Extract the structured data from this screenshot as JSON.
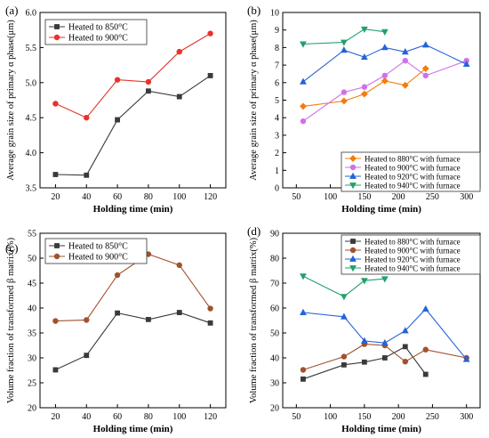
{
  "colors": {
    "black": "#3a3a3a",
    "red": "#e8332a",
    "brown": "#a0522d",
    "orange": "#f57c0a",
    "violet": "#d070e8",
    "blue": "#2563d8",
    "green": "#22a06b"
  },
  "chart_data": [
    {
      "panel": "(a)",
      "type": "line",
      "xlabel": "Holding time (min)",
      "ylabel": "Average grain size of primary α phase(μm)",
      "xlim": [
        10,
        130
      ],
      "ylim": [
        3.5,
        6.0
      ],
      "xticks": [
        20,
        40,
        60,
        80,
        100,
        120
      ],
      "yticks": [
        3.5,
        4.0,
        4.5,
        5.0,
        5.5,
        6.0
      ],
      "tick_format": 1,
      "legend_position": "top-left",
      "series": [
        {
          "name": "Heated to 850°C",
          "color": "black",
          "marker": "square",
          "x": [
            20,
            40,
            60,
            80,
            100,
            120
          ],
          "y": [
            3.69,
            3.68,
            4.47,
            4.88,
            4.8,
            5.1
          ]
        },
        {
          "name": "Heated to 900°C",
          "color": "red",
          "marker": "circle",
          "x": [
            20,
            40,
            60,
            80,
            100,
            120
          ],
          "y": [
            4.7,
            4.5,
            5.04,
            5.01,
            5.44,
            5.7
          ]
        }
      ]
    },
    {
      "panel": "(b)",
      "type": "line",
      "xlabel": "Holding time (min)",
      "ylabel": "Average grain size of primary α phase(μm)",
      "xlim": [
        30,
        320
      ],
      "ylim": [
        0,
        10
      ],
      "xticks": [
        50,
        100,
        150,
        200,
        250,
        300
      ],
      "yticks": [
        0,
        1,
        2,
        3,
        4,
        5,
        6,
        7,
        8,
        9,
        10
      ],
      "tick_format": 0,
      "legend_position": "bottom-right",
      "series": [
        {
          "name": "Heated to 880°C with furnace",
          "color": "orange",
          "marker": "diamond",
          "x": [
            60,
            120,
            150,
            180,
            210,
            240
          ],
          "y": [
            4.65,
            4.95,
            5.35,
            6.1,
            5.85,
            6.8
          ]
        },
        {
          "name": "Heated to 900°C with furnace",
          "color": "violet",
          "marker": "circle",
          "x": [
            60,
            120,
            150,
            180,
            210,
            240,
            300
          ],
          "y": [
            3.8,
            5.45,
            5.75,
            6.4,
            7.25,
            6.4,
            7.25
          ]
        },
        {
          "name": "Heated to 920°C with furnace",
          "color": "blue",
          "marker": "triangle-up",
          "x": [
            60,
            120,
            150,
            180,
            210,
            240,
            300
          ],
          "y": [
            6.05,
            7.85,
            7.45,
            8.0,
            7.75,
            8.15,
            7.05
          ]
        },
        {
          "name": "Heated to 940°C with furnace",
          "color": "green",
          "marker": "triangle-down",
          "x": [
            60,
            120,
            150,
            180
          ],
          "y": [
            8.2,
            8.3,
            9.05,
            8.9
          ]
        }
      ]
    },
    {
      "panel": "(c)",
      "type": "line",
      "xlabel": "Holding time (min)",
      "ylabel": "Volume fraction of transformed β matrix(%)",
      "xlim": [
        10,
        130
      ],
      "ylim": [
        20,
        55
      ],
      "xticks": [
        20,
        40,
        60,
        80,
        100,
        120
      ],
      "yticks": [
        20,
        25,
        30,
        35,
        40,
        45,
        50,
        55
      ],
      "tick_format": 0,
      "legend_position": "top-left",
      "series": [
        {
          "name": "Heated to 850°C",
          "color": "black",
          "marker": "square",
          "x": [
            20,
            40,
            60,
            80,
            100,
            120
          ],
          "y": [
            27.6,
            30.5,
            39.0,
            37.7,
            39.1,
            37.0
          ]
        },
        {
          "name": "Heated to 900°C",
          "color": "brown",
          "marker": "circle",
          "x": [
            20,
            40,
            60,
            80,
            100,
            120
          ],
          "y": [
            37.4,
            37.6,
            46.6,
            50.8,
            48.6,
            39.9
          ]
        }
      ]
    },
    {
      "panel": "(d)",
      "type": "line",
      "xlabel": "Holding time (min)",
      "ylabel": "Volume fraction of transformed β matrix(%)",
      "xlim": [
        30,
        320
      ],
      "ylim": [
        20,
        90
      ],
      "xticks": [
        50,
        100,
        150,
        200,
        250,
        300
      ],
      "yticks": [
        20,
        30,
        40,
        50,
        60,
        70,
        80,
        90
      ],
      "tick_format": 0,
      "legend_position": "top-right",
      "series": [
        {
          "name": "Heated to 880°C with furnace",
          "color": "black",
          "marker": "square",
          "x": [
            60,
            120,
            150,
            180,
            210,
            240
          ],
          "y": [
            31.5,
            37.2,
            38.3,
            40.0,
            44.5,
            33.4
          ]
        },
        {
          "name": "Heated to 900°C with furnace",
          "color": "brown",
          "marker": "circle",
          "x": [
            60,
            120,
            150,
            180,
            210,
            240,
            300
          ],
          "y": [
            35.2,
            40.5,
            45.5,
            45.0,
            38.5,
            43.3,
            40.0
          ]
        },
        {
          "name": "Heated to 920°C with furnace",
          "color": "blue",
          "marker": "triangle-up",
          "x": [
            60,
            120,
            150,
            180,
            210,
            240,
            300
          ],
          "y": [
            58.2,
            56.5,
            46.8,
            46.0,
            50.9,
            59.6,
            39.4
          ]
        },
        {
          "name": "Heated to 940°C with furnace",
          "color": "green",
          "marker": "triangle-down",
          "x": [
            60,
            120,
            150,
            180
          ],
          "y": [
            72.8,
            64.6,
            71.0,
            71.7
          ]
        }
      ]
    }
  ]
}
